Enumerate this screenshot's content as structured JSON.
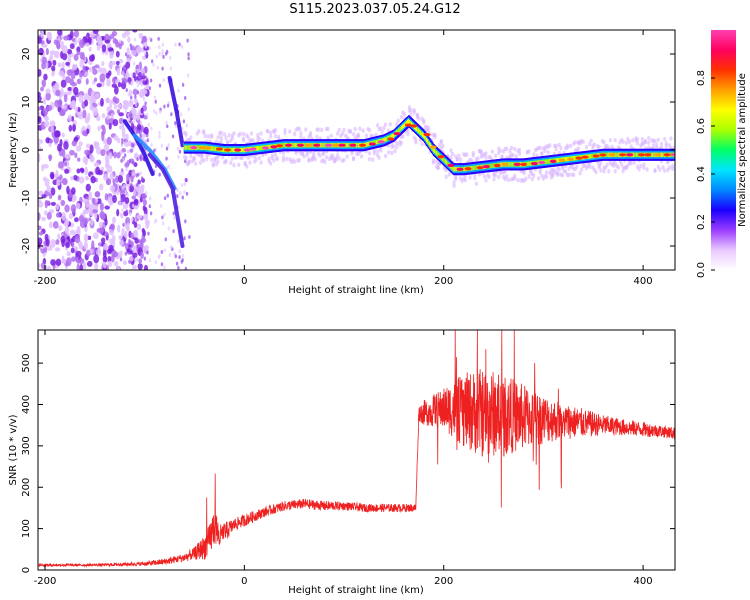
{
  "title": "S115.2023.037.05.24.G12",
  "chart_data": [
    {
      "type": "heatmap",
      "xlabel": "Height of straight line (km)",
      "ylabel": "Frequency (Hz)",
      "xlim": [
        -207,
        432
      ],
      "ylim": [
        -25,
        25
      ],
      "xticks": [
        -200,
        0,
        200,
        400
      ],
      "yticks": [
        -20,
        -10,
        0,
        10,
        20
      ],
      "grid": false,
      "colorbar": {
        "label": "Normalized spectral amplitude",
        "range": [
          0.0,
          1.0
        ],
        "ticks": [
          "0.0",
          "0.2",
          "0.4",
          "0.6",
          "0.8"
        ],
        "colors": [
          "#ffffff",
          "#e9c8ff",
          "#9a3cff",
          "#1a00ff",
          "#0088ff",
          "#00e5ff",
          "#00ff66",
          "#aaff00",
          "#ffff00",
          "#ffa000",
          "#ff3000",
          "#ff0060",
          "#ff40b0"
        ]
      },
      "ridge": {
        "x": [
          -60,
          -40,
          -20,
          0,
          20,
          40,
          60,
          80,
          100,
          120,
          140,
          150,
          160,
          165,
          170,
          180,
          190,
          200,
          210,
          220,
          240,
          260,
          280,
          300,
          320,
          340,
          360,
          380,
          400,
          432
        ],
        "y": [
          0.5,
          0.5,
          0,
          0,
          0.5,
          1,
          1,
          1,
          1,
          1,
          2,
          3,
          5,
          6,
          5,
          3,
          0,
          -2,
          -4,
          -4,
          -3.5,
          -3,
          -3,
          -2.5,
          -2,
          -1.5,
          -1,
          -1,
          -1,
          -1
        ]
      }
    },
    {
      "type": "line",
      "xlabel": "Height of straight line (km)",
      "ylabel": "SNR (10 * v/v)",
      "xlim": [
        -207,
        432
      ],
      "ylim": [
        0,
        580
      ],
      "xticks": [
        -200,
        0,
        200,
        400
      ],
      "yticks": [
        0,
        100,
        200,
        300,
        400,
        500
      ],
      "color": "#ee2020",
      "series": [
        {
          "x": [
            -207,
            -150,
            -100,
            -80,
            -60,
            -50,
            -40,
            -35,
            -30,
            -25,
            -20,
            -10,
            0,
            20,
            40,
            60,
            80,
            100,
            120,
            140,
            160,
            172,
            175,
            180,
            200,
            220,
            240,
            260,
            280,
            300,
            320,
            340,
            360,
            380,
            400,
            420,
            432
          ],
          "y": [
            12,
            12,
            15,
            20,
            30,
            40,
            55,
            70,
            110,
            80,
            90,
            110,
            120,
            140,
            155,
            160,
            155,
            155,
            150,
            150,
            150,
            150,
            380,
            380,
            390,
            385,
            380,
            375,
            370,
            365,
            360,
            355,
            350,
            345,
            340,
            335,
            330
          ],
          "noise": [
            3,
            3,
            5,
            8,
            10,
            15,
            30,
            40,
            50,
            30,
            25,
            15,
            15,
            12,
            12,
            12,
            12,
            10,
            10,
            10,
            10,
            10,
            20,
            30,
            50,
            90,
            110,
            100,
            80,
            60,
            45,
            35,
            25,
            20,
            18,
            15,
            15
          ]
        }
      ]
    }
  ]
}
